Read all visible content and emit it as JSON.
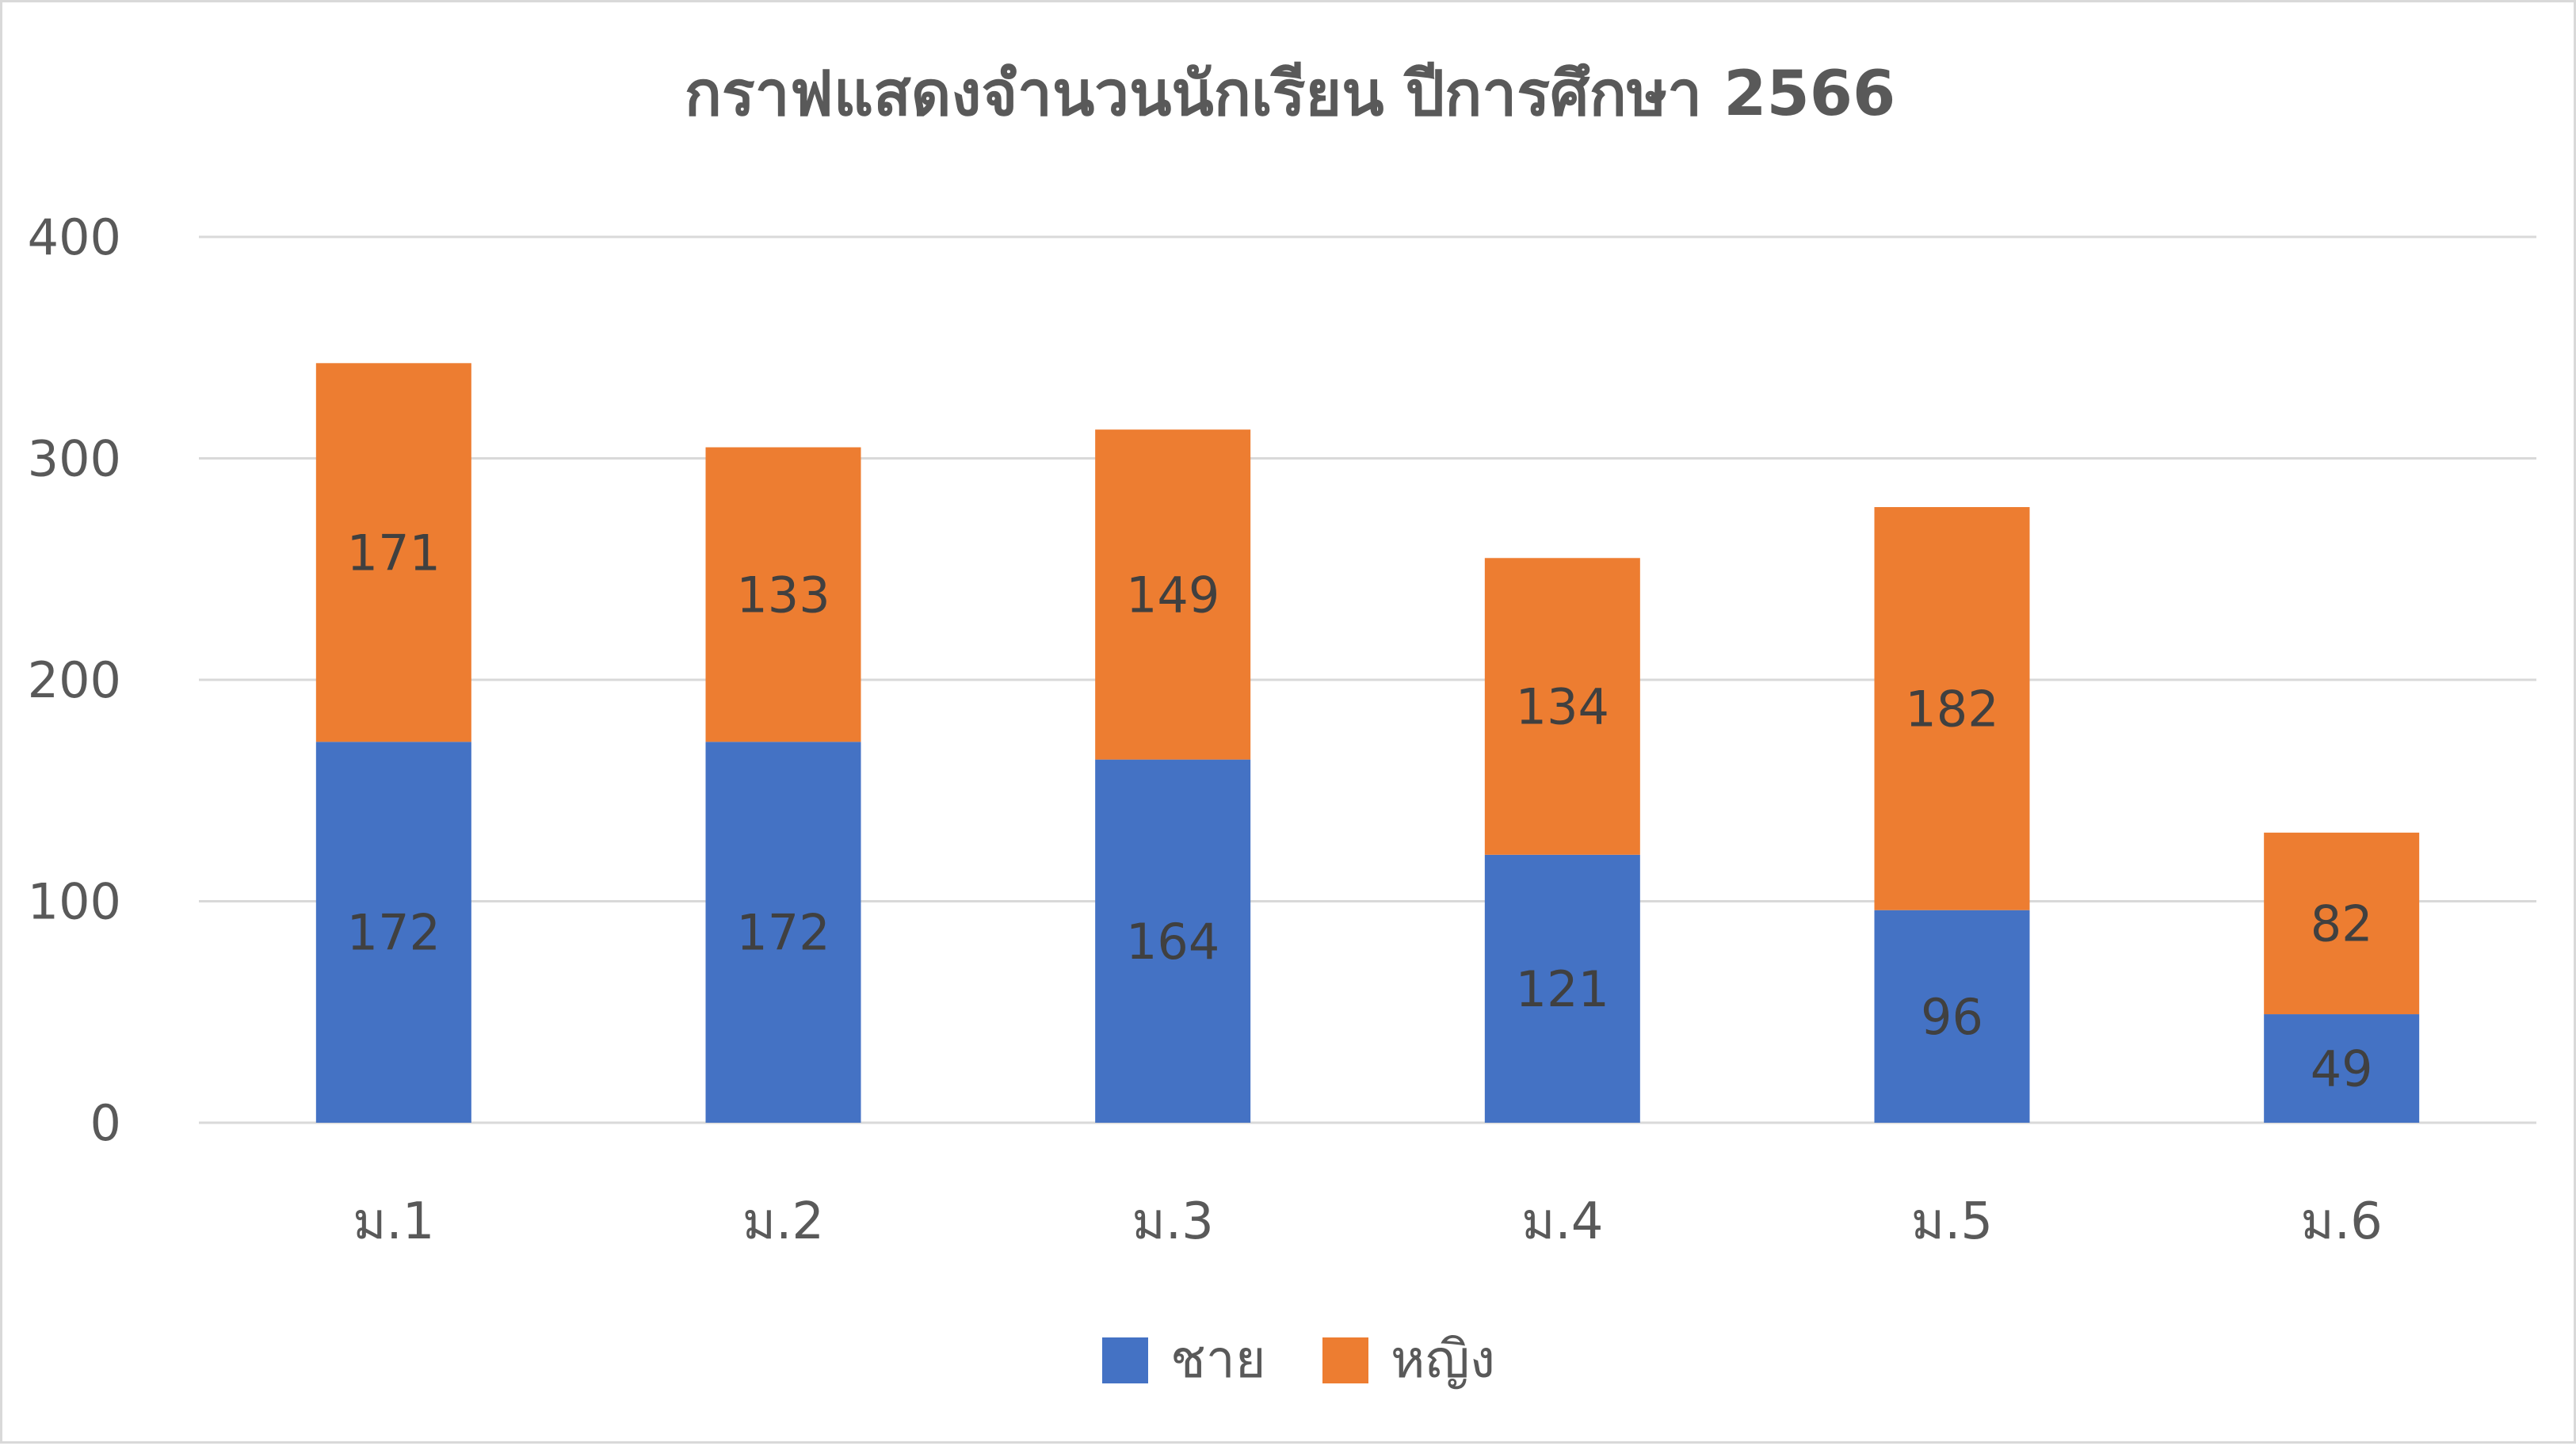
{
  "chart_data": {
    "type": "bar",
    "stacked": true,
    "title": "กราฟแสดงจำนวนนักเรียน ปีการศึกษา 2566",
    "categories": [
      "ม.1",
      "ม.2",
      "ม.3",
      "ม.4",
      "ม.5",
      "ม.6"
    ],
    "series": [
      {
        "name": "ชาย",
        "values": [
          172,
          172,
          164,
          121,
          96,
          49
        ],
        "color": "#4472C4"
      },
      {
        "name": "หญิง",
        "values": [
          171,
          133,
          149,
          134,
          182,
          82
        ],
        "color": "#ED7D31"
      }
    ],
    "ylim": [
      0,
      400
    ],
    "yticks": [
      0,
      100,
      200,
      300,
      400
    ],
    "grid": true,
    "legend": "bottom",
    "data_labels": true
  }
}
